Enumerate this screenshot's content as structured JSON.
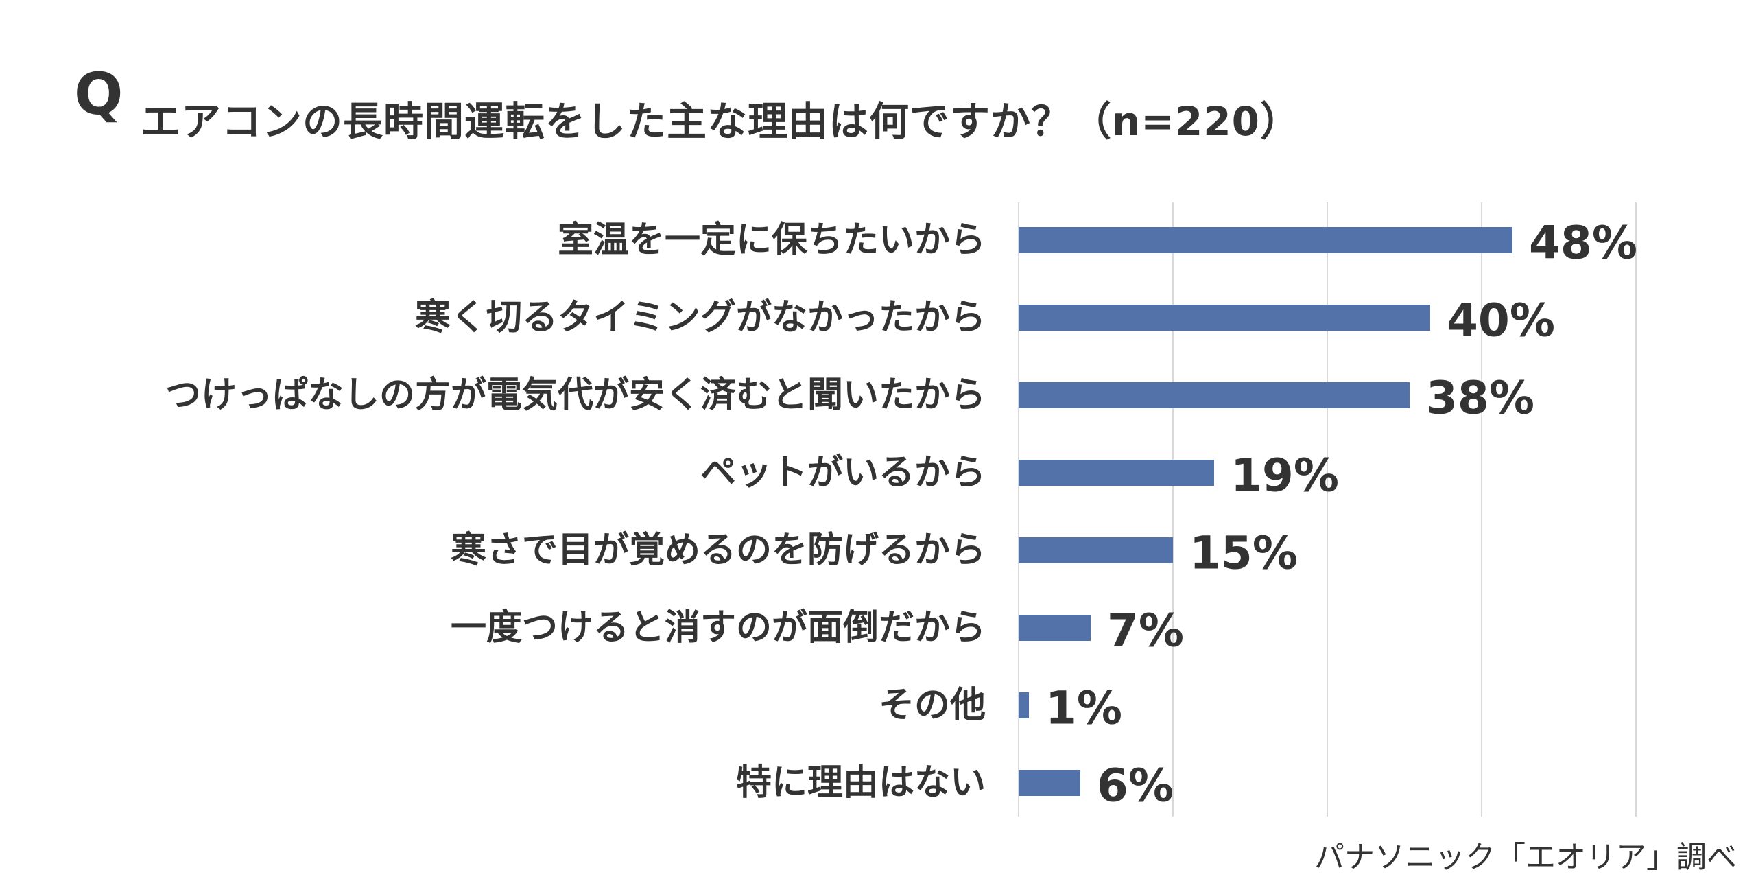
{
  "question": {
    "mark": "Q",
    "text": "エアコンの長時間運転をした主な理由は何ですか？（n=220）"
  },
  "source": "パナソニック「エオリア」調べ",
  "colors": {
    "bar": "#5472AA",
    "grid": "#D9D9D9",
    "text": "#333333"
  },
  "chart_data": {
    "type": "bar",
    "orientation": "horizontal",
    "categories": [
      "室温を一定に保ちたいから",
      "寒く切るタイミングがなかったから",
      "つけっぱなしの方が電気代が安く済むと聞いたから",
      "ペットがいるから",
      "寒さで目が覚めるのを防げるから",
      "一度つけると消すのが面倒だから",
      "その他",
      "特に理由はない"
    ],
    "values": [
      48,
      40,
      38,
      19,
      15,
      7,
      1,
      6
    ],
    "value_labels": [
      "48%",
      "40%",
      "38%",
      "19%",
      "15%",
      "7%",
      "1%",
      "6%"
    ],
    "xlim": [
      0,
      60
    ],
    "grid": true,
    "legend": "none"
  }
}
